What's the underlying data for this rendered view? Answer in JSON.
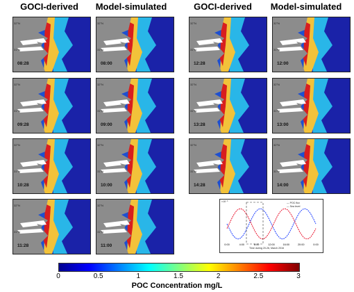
{
  "headers": [
    "GOCI-derived",
    "Model-simulated",
    "GOCI-derived",
    "Model-simulated"
  ],
  "panels": [
    {
      "col": 0,
      "row": 0,
      "time": "08:28"
    },
    {
      "col": 0,
      "row": 1,
      "time": "09:28"
    },
    {
      "col": 0,
      "row": 2,
      "time": "10:28"
    },
    {
      "col": 0,
      "row": 3,
      "time": "11:28"
    },
    {
      "col": 1,
      "row": 0,
      "time": "08:00"
    },
    {
      "col": 1,
      "row": 1,
      "time": "09:00"
    },
    {
      "col": 1,
      "row": 2,
      "time": "10:00"
    },
    {
      "col": 1,
      "row": 3,
      "time": "11:00"
    },
    {
      "col": 2,
      "row": 0,
      "time": "12:28"
    },
    {
      "col": 2,
      "row": 1,
      "time": "13:28"
    },
    {
      "col": 2,
      "row": 2,
      "time": "14:28"
    },
    {
      "col": 3,
      "row": 0,
      "time": "12:00"
    },
    {
      "col": 3,
      "row": 1,
      "time": "13:00"
    },
    {
      "col": 3,
      "row": 2,
      "time": "14:00"
    }
  ],
  "map_axes": {
    "lat_labels": [
      "32°N",
      "31°N"
    ],
    "lon_labels": [
      "121°E",
      "122°E",
      "123°E"
    ]
  },
  "colorbar": {
    "ticks": [
      "0",
      "0.5",
      "1",
      "1.5",
      "2",
      "2.5",
      "3"
    ],
    "label": "POC Concentration mg/L",
    "colors": [
      "#00008f",
      "#0000ff",
      "#0080ff",
      "#00ffff",
      "#80ff80",
      "#ffff00",
      "#ff8000",
      "#ff0000",
      "#800000"
    ]
  },
  "chart_data": {
    "type": "line",
    "xlabel": "Time during 20-26, March 2016",
    "ylabel_left": "POC Flux (Tg)",
    "ylabel_right": "Sea Level (m)",
    "exponent": "×10⁻⁶",
    "x_ticks": [
      "0:00",
      "4:00",
      "8:00",
      "12:00",
      "16:00",
      "20:00",
      "0:00"
    ],
    "series": [
      {
        "name": "POC flux",
        "color": "#1a3cff"
      },
      {
        "name": "Sea level",
        "color": "#e8102a"
      }
    ]
  }
}
